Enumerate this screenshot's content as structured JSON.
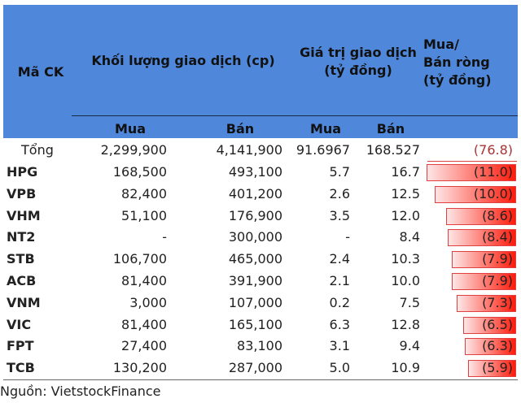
{
  "header": {
    "ticker": "Mã CK",
    "volume": "Khối lượng giao dịch (cp)",
    "value_l1": "Giá trị giao dịch",
    "value_l2": "(tỷ đồng)",
    "net_l1": "Mua/",
    "net_l2": "Bán ròng",
    "net_l3": "(tỷ đồng)",
    "buy": "Mua",
    "sell": "Bán"
  },
  "total": {
    "label": "Tổng",
    "vol_buy": "2,299,900",
    "vol_sell": "4,141,900",
    "val_buy": "91.6967",
    "val_sell": "168.527",
    "net": "(76.8)"
  },
  "rows": [
    {
      "ticker": "HPG",
      "vol_buy": "168,500",
      "vol_sell": "493,100",
      "val_buy": "5.7",
      "val_sell": "16.7",
      "net": "(11.0)",
      "net_value": -11.0
    },
    {
      "ticker": "VPB",
      "vol_buy": "82,400",
      "vol_sell": "401,200",
      "val_buy": "2.6",
      "val_sell": "12.5",
      "net": "(10.0)",
      "net_value": -10.0
    },
    {
      "ticker": "VHM",
      "vol_buy": "51,100",
      "vol_sell": "176,900",
      "val_buy": "3.5",
      "val_sell": "12.0",
      "net": "(8.6)",
      "net_value": -8.6
    },
    {
      "ticker": "NT2",
      "vol_buy": "-",
      "vol_sell": "300,000",
      "val_buy": "-",
      "val_sell": "8.4",
      "net": "(8.4)",
      "net_value": -8.4
    },
    {
      "ticker": "STB",
      "vol_buy": "106,700",
      "vol_sell": "465,000",
      "val_buy": "2.4",
      "val_sell": "10.3",
      "net": "(7.9)",
      "net_value": -7.9
    },
    {
      "ticker": "ACB",
      "vol_buy": "81,400",
      "vol_sell": "391,900",
      "val_buy": "2.1",
      "val_sell": "10.0",
      "net": "(7.9)",
      "net_value": -7.9
    },
    {
      "ticker": "VNM",
      "vol_buy": "3,000",
      "vol_sell": "107,000",
      "val_buy": "0.2",
      "val_sell": "7.5",
      "net": "(7.3)",
      "net_value": -7.3
    },
    {
      "ticker": "VIC",
      "vol_buy": "81,400",
      "vol_sell": "165,100",
      "val_buy": "6.3",
      "val_sell": "12.8",
      "net": "(6.5)",
      "net_value": -6.5
    },
    {
      "ticker": "FPT",
      "vol_buy": "27,400",
      "vol_sell": "83,100",
      "val_buy": "3.1",
      "val_sell": "9.4",
      "net": "(6.3)",
      "net_value": -6.3
    },
    {
      "ticker": "TCB",
      "vol_buy": "130,200",
      "vol_sell": "287,000",
      "val_buy": "5.0",
      "val_sell": "10.9",
      "net": "(5.9)",
      "net_value": -5.9
    }
  ],
  "colors": {
    "header_bg": "#4f88db",
    "bar": "#ff1a0a"
  },
  "footer": "Nguồn: VietstockFinance"
}
